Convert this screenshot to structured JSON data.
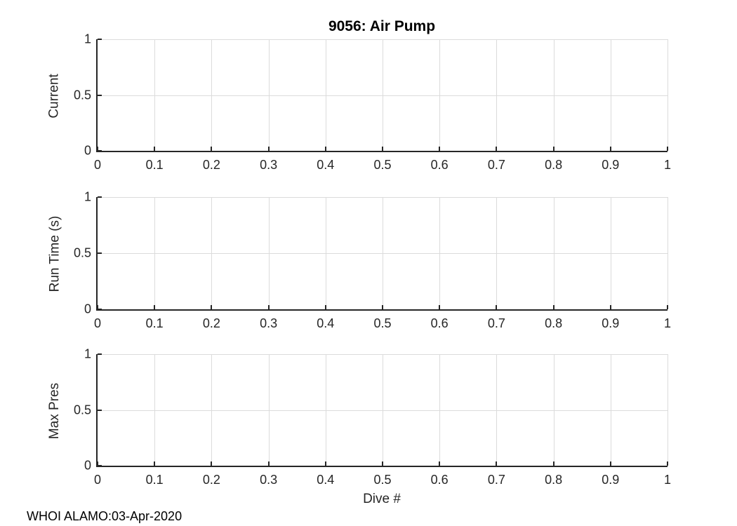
{
  "title": "9056: Air Pump",
  "xlabel": "Dive #",
  "footer": "WHOI ALAMO:03-Apr-2020",
  "colors": {
    "axis": "#262626",
    "grid": "#dbdbdb",
    "text": "#262626",
    "title": "#000000",
    "background": "#ffffff"
  },
  "axes": {
    "x_ticks": [
      "0",
      "0.1",
      "0.2",
      "0.3",
      "0.4",
      "0.5",
      "0.6",
      "0.7",
      "0.8",
      "0.9",
      "1"
    ],
    "y_ticks": [
      "0",
      "0.5",
      "1"
    ],
    "x_range": [
      0,
      1
    ],
    "y_range": [
      0,
      1
    ],
    "grid": true
  },
  "subplots": [
    {
      "ylabel": "Current"
    },
    {
      "ylabel": "Run Time (s)"
    },
    {
      "ylabel": "Max Pres"
    }
  ],
  "chart_data": [
    {
      "type": "line",
      "subplot": 1,
      "title": "9056: Air Pump",
      "xlabel": "",
      "ylabel": "Current",
      "xlim": [
        0,
        1
      ],
      "ylim": [
        0,
        1
      ],
      "xticks": [
        0,
        0.1,
        0.2,
        0.3,
        0.4,
        0.5,
        0.6,
        0.7,
        0.8,
        0.9,
        1
      ],
      "yticks": [
        0,
        0.5,
        1
      ],
      "grid": true,
      "legend": false,
      "series": []
    },
    {
      "type": "line",
      "subplot": 2,
      "title": "",
      "xlabel": "",
      "ylabel": "Run Time (s)",
      "xlim": [
        0,
        1
      ],
      "ylim": [
        0,
        1
      ],
      "xticks": [
        0,
        0.1,
        0.2,
        0.3,
        0.4,
        0.5,
        0.6,
        0.7,
        0.8,
        0.9,
        1
      ],
      "yticks": [
        0,
        0.5,
        1
      ],
      "grid": true,
      "legend": false,
      "series": []
    },
    {
      "type": "line",
      "subplot": 3,
      "title": "",
      "xlabel": "Dive #",
      "ylabel": "Max Pres",
      "xlim": [
        0,
        1
      ],
      "ylim": [
        0,
        1
      ],
      "xticks": [
        0,
        0.1,
        0.2,
        0.3,
        0.4,
        0.5,
        0.6,
        0.7,
        0.8,
        0.9,
        1
      ],
      "yticks": [
        0,
        0.5,
        1
      ],
      "grid": true,
      "legend": false,
      "series": []
    }
  ]
}
